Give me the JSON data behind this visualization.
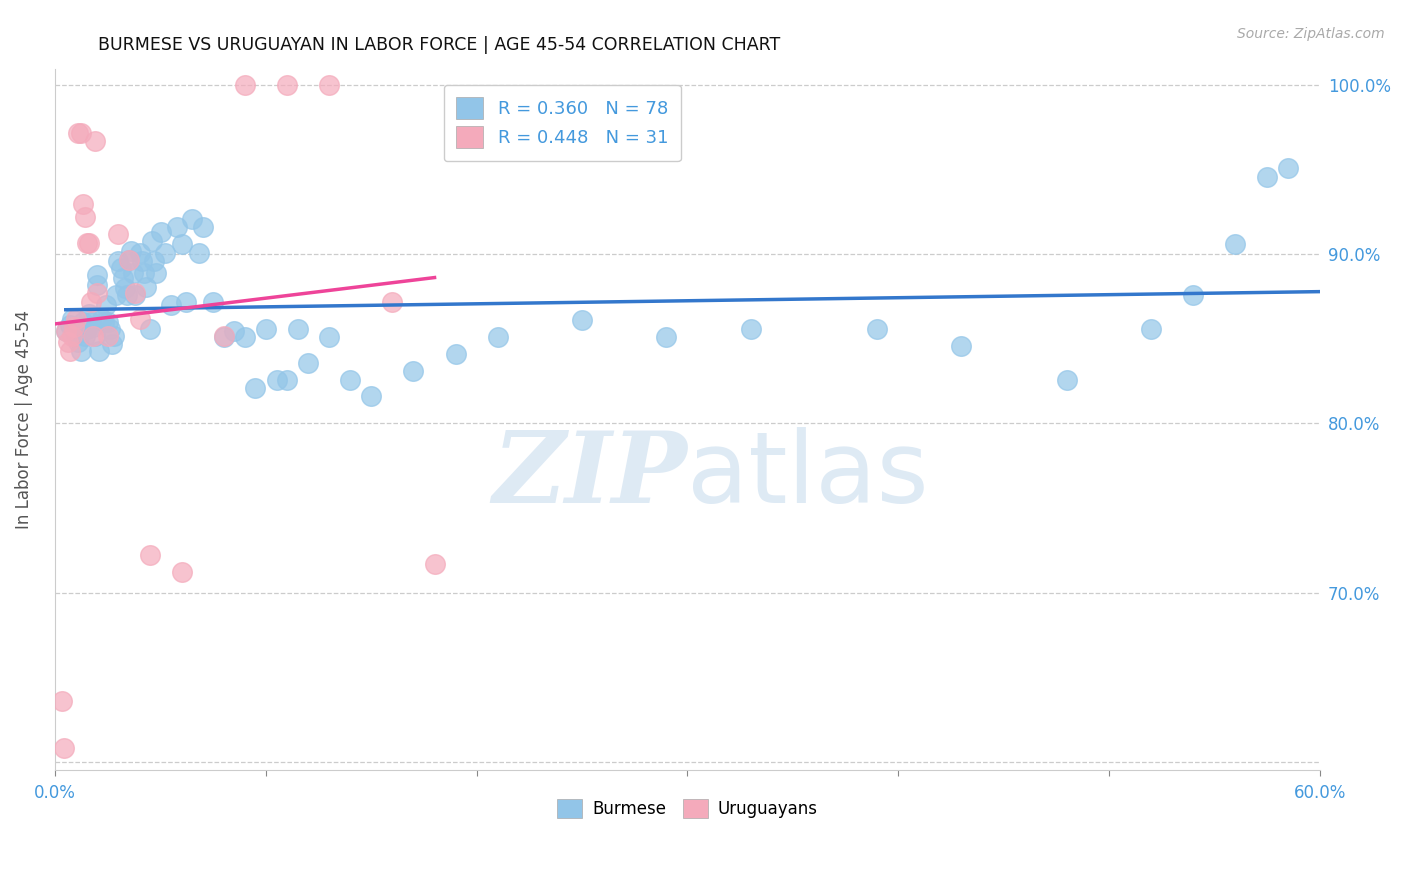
{
  "title": "BURMESE VS URUGUAYAN IN LABOR FORCE | AGE 45-54 CORRELATION CHART",
  "source": "Source: ZipAtlas.com",
  "ylabel": "In Labor Force | Age 45-54",
  "xlim": [
    0.0,
    0.6
  ],
  "ylim": [
    0.595,
    1.01
  ],
  "xticks": [
    0.0,
    0.1,
    0.2,
    0.3,
    0.4,
    0.5,
    0.6
  ],
  "xtick_labels": [
    "0.0%",
    "",
    "",
    "",
    "",
    "",
    "60.0%"
  ],
  "yticks": [
    0.6,
    0.7,
    0.8,
    0.9,
    1.0
  ],
  "ytick_labels": [
    "",
    "70.0%",
    "80.0%",
    "90.0%",
    "100.0%"
  ],
  "legend_blue_r": "R = 0.360",
  "legend_blue_n": "N = 78",
  "legend_pink_r": "R = 0.448",
  "legend_pink_n": "N = 31",
  "blue_color": "#92C5E8",
  "pink_color": "#F4AABB",
  "blue_line_color": "#3377CC",
  "pink_line_color": "#EE4499",
  "label_color": "#4499DD",
  "watermark_color": "#C8DCEE",
  "burmese_x": [
    0.005,
    0.007,
    0.008,
    0.009,
    0.01,
    0.011,
    0.012,
    0.013,
    0.014,
    0.015,
    0.016,
    0.017,
    0.018,
    0.019,
    0.02,
    0.02,
    0.021,
    0.022,
    0.023,
    0.024,
    0.025,
    0.026,
    0.027,
    0.028,
    0.029,
    0.03,
    0.031,
    0.032,
    0.033,
    0.034,
    0.035,
    0.036,
    0.037,
    0.038,
    0.04,
    0.041,
    0.042,
    0.043,
    0.045,
    0.046,
    0.047,
    0.048,
    0.05,
    0.052,
    0.055,
    0.058,
    0.06,
    0.062,
    0.065,
    0.068,
    0.07,
    0.075,
    0.08,
    0.085,
    0.09,
    0.095,
    0.1,
    0.105,
    0.11,
    0.115,
    0.12,
    0.13,
    0.14,
    0.15,
    0.17,
    0.19,
    0.21,
    0.25,
    0.29,
    0.33,
    0.39,
    0.43,
    0.48,
    0.52,
    0.54,
    0.56,
    0.575,
    0.585
  ],
  "burmese_y": [
    0.855,
    0.858,
    0.862,
    0.856,
    0.853,
    0.848,
    0.843,
    0.86,
    0.852,
    0.856,
    0.865,
    0.86,
    0.857,
    0.852,
    0.882,
    0.888,
    0.843,
    0.862,
    0.86,
    0.87,
    0.86,
    0.856,
    0.847,
    0.852,
    0.876,
    0.896,
    0.892,
    0.886,
    0.88,
    0.876,
    0.897,
    0.902,
    0.889,
    0.876,
    0.901,
    0.896,
    0.889,
    0.881,
    0.856,
    0.908,
    0.896,
    0.889,
    0.913,
    0.901,
    0.87,
    0.916,
    0.906,
    0.872,
    0.921,
    0.901,
    0.916,
    0.872,
    0.851,
    0.855,
    0.851,
    0.821,
    0.856,
    0.826,
    0.826,
    0.856,
    0.836,
    0.851,
    0.826,
    0.816,
    0.831,
    0.841,
    0.851,
    0.861,
    0.851,
    0.856,
    0.856,
    0.846,
    0.826,
    0.856,
    0.876,
    0.906,
    0.946,
    0.951
  ],
  "uruguayan_x": [
    0.003,
    0.004,
    0.005,
    0.006,
    0.007,
    0.008,
    0.009,
    0.01,
    0.011,
    0.012,
    0.013,
    0.014,
    0.015,
    0.016,
    0.017,
    0.018,
    0.019,
    0.02,
    0.025,
    0.03,
    0.035,
    0.038,
    0.04,
    0.045,
    0.06,
    0.08,
    0.09,
    0.11,
    0.13,
    0.16,
    0.18
  ],
  "uruguayan_y": [
    0.636,
    0.608,
    0.855,
    0.848,
    0.843,
    0.852,
    0.857,
    0.862,
    0.972,
    0.972,
    0.93,
    0.922,
    0.907,
    0.907,
    0.872,
    0.852,
    0.967,
    0.877,
    0.852,
    0.912,
    0.897,
    0.877,
    0.862,
    0.722,
    0.712,
    0.852,
    1.0,
    1.0,
    1.0,
    0.872,
    0.717
  ]
}
